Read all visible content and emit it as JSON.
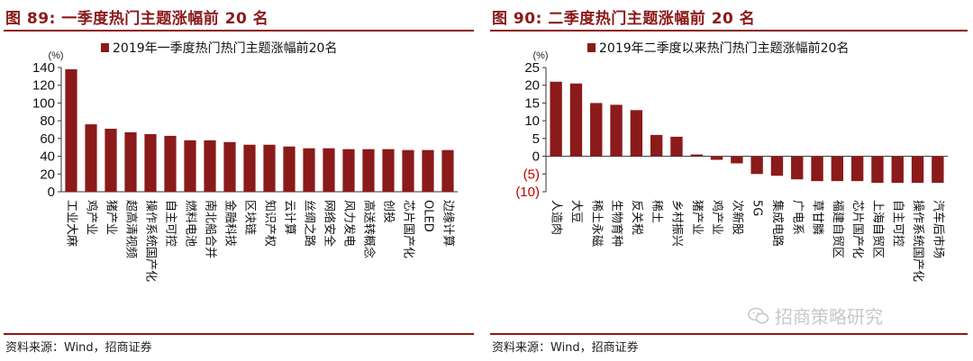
{
  "figures": [
    {
      "title": "图 89:  一季度热门主题涨幅前 20 名",
      "source": "资料来源：Wind，招商证券",
      "chart_data": {
        "type": "bar",
        "unit_label": "(%)",
        "series": [
          {
            "name": "2019年一季度热门热门主题涨幅前20名",
            "values": [
              138,
              76,
              71,
              67,
              65,
              63,
              58,
              58,
              56,
              53,
              53,
              51,
              49,
              49,
              48,
              48,
              48,
              47,
              47,
              47
            ]
          }
        ],
        "categories": [
          "工业大麻",
          "鸡产业",
          "猪产业",
          "超高清视频",
          "操作系统国产化",
          "自主可控",
          "燃料电池",
          "南北船合并",
          "金融科技",
          "区块链",
          "知识产权",
          "云计算",
          "丝绸之路",
          "网络安全",
          "风力发电",
          "高送转概念",
          "创投",
          "芯片国产化",
          "OLED",
          "边缘计算"
        ],
        "yticks": [
          0,
          20,
          40,
          60,
          80,
          100,
          120,
          140
        ],
        "ylim": [
          0,
          140
        ],
        "bar_color": "#8b1a1a",
        "legend_position": "top"
      }
    },
    {
      "title": "图 90:  二季度热门主题涨幅前 20 名",
      "source": "资料来源：Wind，招商证券",
      "chart_data": {
        "type": "bar",
        "unit_label": "(%)",
        "series": [
          {
            "name": "2019年二季度以来热门热门主题涨幅前20名",
            "values": [
              21,
              20.5,
              15,
              14.5,
              13,
              6,
              5.5,
              0.5,
              -1,
              -2,
              -5,
              -5.5,
              -6.5,
              -7,
              -7,
              -7,
              -7.5,
              -7.5,
              -7.5,
              -7.5
            ]
          }
        ],
        "categories": [
          "人造肉",
          "大豆",
          "稀土永磁",
          "生物育种",
          "反关税",
          "稀土",
          "乡村振兴",
          "猪产业",
          "鸡产业",
          "次新股",
          "5G",
          "集成电路",
          "广电系",
          "草甘膦",
          "福建自贸区",
          "芯片国产化",
          "上海自贸区",
          "自主可控",
          "操作系统国产化",
          "汽车后市场"
        ],
        "yticks": [
          -10,
          -5,
          0,
          5,
          10,
          15,
          20,
          25
        ],
        "ytick_labels": [
          "(10)",
          "(5)",
          "0",
          "5",
          "10",
          "15",
          "20",
          "25"
        ],
        "ylim": [
          -10,
          25
        ],
        "bar_color": "#8b1a1a",
        "negative_label_color": "#c00000",
        "legend_position": "top"
      }
    }
  ],
  "watermark": {
    "text": "招商策略研究",
    "icon": "wechat-icon"
  }
}
